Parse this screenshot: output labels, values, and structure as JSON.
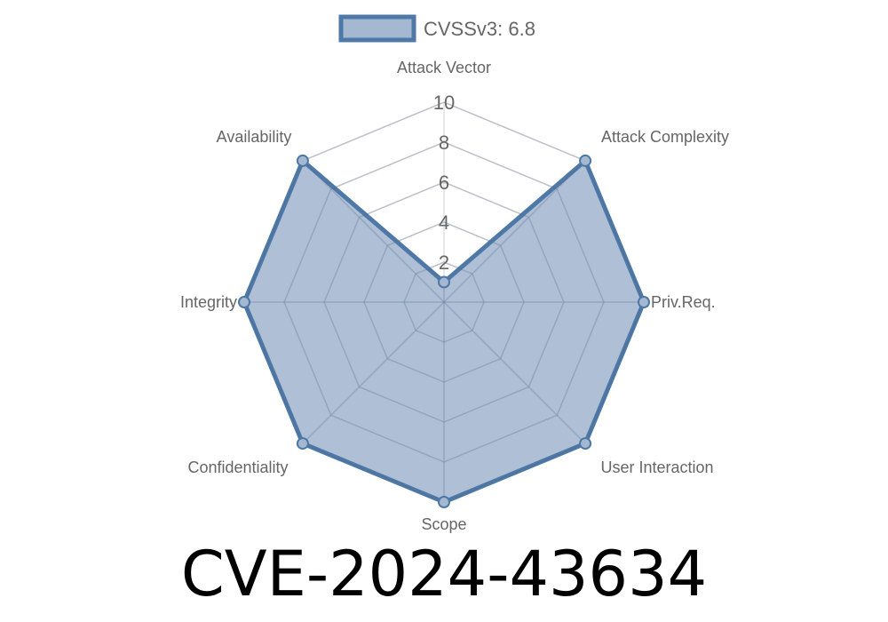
{
  "chart_data": {
    "type": "radar",
    "axes": [
      "Attack Vector",
      "Attack Complexity",
      "Priv.Req.",
      "User Interaction",
      "Scope",
      "Confidentiality",
      "Integrity",
      "Availability"
    ],
    "series": [
      {
        "name": "CVSSv3: 6.8",
        "values": [
          1,
          10,
          10,
          10,
          10,
          10,
          10,
          10
        ]
      }
    ],
    "r_ticks": [
      "2",
      "4",
      "6",
      "8",
      "10"
    ],
    "r_range": [
      0,
      10
    ],
    "grid": true,
    "legend_position": "top",
    "colors": {
      "line": "#4e79a7",
      "fill": "#a5b8d1",
      "grid": "#e0e0e0"
    }
  },
  "title": "CVE-2024-43634"
}
